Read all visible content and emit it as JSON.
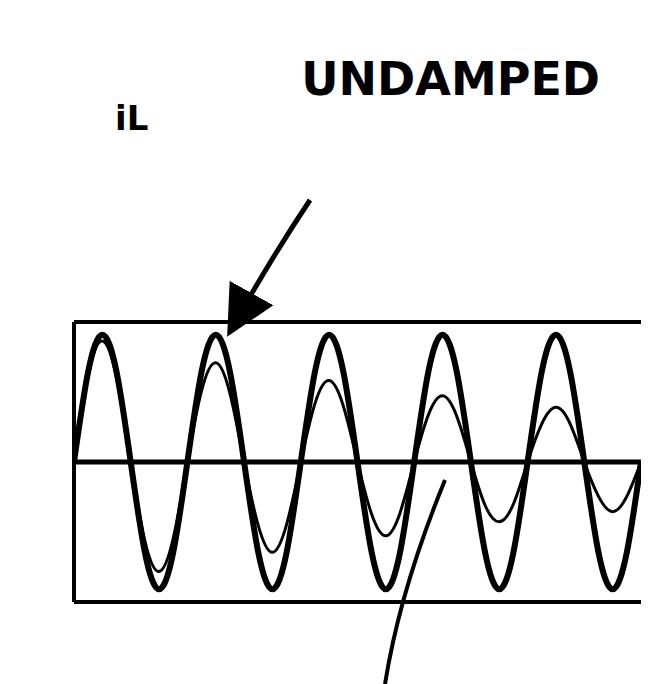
{
  "chart_data": {
    "type": "line",
    "y_label": "iL",
    "x": [
      0,
      0.25,
      0.5,
      0.75,
      1,
      1.25,
      1.5,
      1.75,
      2,
      2.25,
      2.5,
      2.75,
      3,
      3.25,
      3.5,
      3.75,
      4,
      4.25,
      4.5,
      4.75,
      5,
      5.25,
      5.5,
      5.75,
      6,
      6.25,
      6.5,
      6.75,
      7,
      7.25,
      7.5,
      7.75,
      8,
      8.25,
      8.5,
      8.75,
      9,
      9.25,
      9.5,
      9.75,
      10
    ],
    "series": [
      {
        "name": "UNDAMPED",
        "color": "#000000",
        "values": [
          0,
          0.71,
          1,
          0.71,
          0,
          -0.71,
          -1,
          -0.71,
          0,
          0.71,
          1,
          0.71,
          0,
          -0.71,
          -1,
          -0.71,
          0,
          0.71,
          1,
          0.71,
          0,
          -0.71,
          -1,
          -0.71,
          0,
          0.71,
          1,
          0.71,
          0,
          -0.71,
          -1,
          -0.71,
          0,
          0.71,
          1,
          0.71,
          0,
          -0.71,
          -1,
          -0.71,
          0
        ]
      },
      {
        "color": "#000000",
        "values": [
          0,
          0.68,
          0.95,
          0.66,
          0,
          -0.62,
          -0.86,
          -0.6,
          0,
          0.56,
          0.78,
          0.54,
          0,
          -0.5,
          -0.71,
          -0.49,
          0,
          0.46,
          0.64,
          0.44,
          0,
          -0.41,
          -0.58,
          -0.4,
          0,
          0.37,
          0.52,
          0.36,
          0,
          -0.34,
          -0.47,
          -0.33,
          0,
          0.3,
          0.43,
          0.3,
          0,
          -0.27,
          -0.39,
          -0.27,
          0
        ]
      }
    ],
    "xlim": [
      0,
      10
    ],
    "ylim": [
      -1.1,
      1.1
    ],
    "tick_labels": false
  }
}
